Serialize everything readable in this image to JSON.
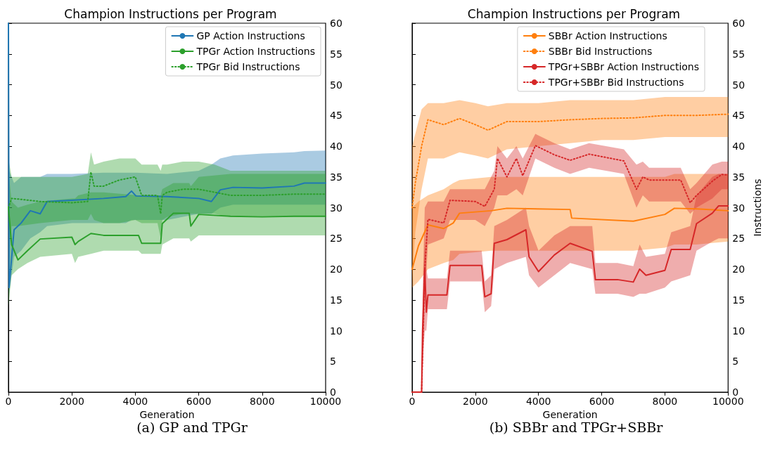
{
  "chart_data": [
    {
      "type": "line",
      "title": "Champion Instructions per Program",
      "xlabel": "Generation",
      "annotations": [
        "(a) GP and TPGr"
      ],
      "xlim": [
        0,
        10000
      ],
      "xticks": [
        0,
        2000,
        4000,
        6000,
        8000,
        10000
      ],
      "ylim": [
        0,
        60
      ],
      "yticks": [
        0,
        5,
        10,
        15,
        20,
        25,
        30,
        35,
        40,
        45,
        50,
        55,
        60
      ],
      "grid": false,
      "legend": "top right",
      "marker": "none",
      "series": [
        {
          "name": "GP Action Instructions",
          "color": "#1f77b4",
          "line_style": "solid",
          "x": [
            0,
            20,
            177,
            400,
            690,
            1000,
            1220,
            2000,
            3000,
            3700,
            3880,
            4020,
            5000,
            6000,
            6400,
            6680,
            7080,
            8000,
            9000,
            9330,
            10000
          ],
          "values": [
            60,
            17,
            26.4,
            27.5,
            29.5,
            29,
            31,
            31.2,
            31.5,
            31.8,
            32.7,
            31.9,
            31.8,
            31.5,
            31,
            32.9,
            33.3,
            33.2,
            33.5,
            34,
            34
          ],
          "lower": [
            null,
            16,
            22,
            23,
            25,
            26,
            27,
            27.5,
            27.5,
            27.5,
            28,
            28,
            28,
            29,
            29,
            30,
            30.5,
            30.5,
            30.5,
            30.5,
            30.5
          ],
          "upper": [
            null,
            36,
            34,
            35,
            35,
            35,
            35.5,
            35.5,
            35.7,
            35.7,
            35.7,
            35.7,
            35.5,
            36,
            37,
            38,
            38.5,
            38.8,
            39,
            39.2,
            39.3
          ]
        },
        {
          "name": "TPGr Action Instructions",
          "color": "#2ca02c",
          "line_style": "solid",
          "x": [
            0,
            100,
            300,
            600,
            1000,
            2000,
            2100,
            2200,
            2600,
            3000,
            4100,
            4200,
            4800,
            4850,
            5200,
            5700,
            5750,
            6000,
            7000,
            8000,
            9000,
            10000
          ],
          "values": [
            30,
            24,
            21.5,
            23,
            24.9,
            25.2,
            24,
            24.5,
            25.8,
            25.5,
            25.5,
            24.2,
            24.2,
            27.4,
            29.1,
            29.1,
            27,
            28.9,
            28.6,
            28.5,
            28.6,
            28.6
          ],
          "lower": [
            14,
            19,
            20,
            21,
            22,
            22.5,
            21,
            22,
            22.5,
            23,
            23,
            22.5,
            22.5,
            24,
            25,
            25,
            24.5,
            25.5,
            25.5,
            25.5,
            25.5,
            25.5
          ],
          "upper": [
            36,
            31,
            30,
            30.5,
            31,
            31.5,
            31.5,
            32,
            32.5,
            32.5,
            32,
            32,
            32,
            33,
            34,
            34,
            33.5,
            35,
            35.5,
            35.5,
            35.5,
            35.5
          ]
        },
        {
          "name": "TPGr Bid Instructions",
          "color": "#2ca02c",
          "line_style": "dotted",
          "x": [
            0,
            100,
            300,
            1000,
            2000,
            2500,
            2600,
            2700,
            3000,
            3500,
            4000,
            4200,
            4700,
            4800,
            4850,
            5000,
            5500,
            6000,
            6500,
            7000,
            8000,
            9000,
            10000
          ],
          "values": [
            30,
            31.5,
            31.4,
            31,
            30.8,
            31,
            35.8,
            33.5,
            33.5,
            34.5,
            35,
            32,
            32,
            29,
            32,
            32.5,
            33,
            33,
            32.5,
            32,
            32,
            32.2,
            32.2
          ],
          "lower": [
            22,
            27,
            27,
            27.5,
            28,
            28,
            29,
            28,
            27.5,
            27.5,
            28,
            27.5,
            27.5,
            25,
            28,
            28.5,
            29,
            29,
            29,
            28.5,
            28.5,
            28.5,
            28.5
          ],
          "upper": [
            38,
            35,
            35,
            35,
            35,
            35.5,
            39,
            37,
            37.5,
            38,
            38,
            37,
            37,
            36,
            37,
            37,
            37.5,
            37.5,
            37,
            36,
            36,
            36,
            36
          ]
        }
      ]
    },
    {
      "type": "line",
      "title": "Champion Instructions per Program",
      "xlabel": "Generation",
      "ylabel": "Instructions",
      "annotations": [
        "(b) SBBr and TPGr+SBBr"
      ],
      "xlim": [
        0,
        10000
      ],
      "xticks": [
        0,
        2000,
        4000,
        6000,
        8000,
        10000
      ],
      "ylim": [
        0,
        60
      ],
      "yticks": [
        0,
        5,
        10,
        15,
        20,
        25,
        30,
        35,
        40,
        45,
        50,
        55,
        60
      ],
      "grid": false,
      "legend": "top right",
      "marker": "none",
      "series": [
        {
          "name": "SBBr Action Instructions",
          "color": "#ff7f0e",
          "line_style": "solid",
          "x": [
            0,
            200,
            500,
            1000,
            1300,
            1500,
            2500,
            3000,
            5000,
            5050,
            7000,
            8000,
            8300,
            9000,
            10000
          ],
          "values": [
            20,
            23.8,
            27.2,
            26.6,
            27.5,
            29.1,
            29.5,
            29.9,
            29.7,
            28.3,
            27.8,
            28.9,
            29.9,
            29.8,
            29.5
          ],
          "lower": [
            17,
            18,
            20,
            21,
            21.5,
            22.5,
            23,
            23,
            23,
            23,
            23,
            23.5,
            24,
            24,
            24.5
          ],
          "upper": [
            30,
            31,
            32,
            33,
            34,
            34.5,
            35,
            35,
            35,
            35,
            35,
            35,
            35.5,
            35.5,
            35.5
          ]
        },
        {
          "name": "SBBr Bid Instructions",
          "color": "#ff7f0e",
          "line_style": "dotted",
          "x": [
            0,
            100,
            300,
            500,
            1000,
            1500,
            2000,
            2400,
            3000,
            4000,
            5000,
            6000,
            7000,
            8000,
            9000,
            10000
          ],
          "values": [
            30,
            34,
            40,
            44.3,
            43.5,
            44.5,
            43.5,
            42.6,
            44,
            44,
            44.3,
            44.5,
            44.6,
            45,
            45,
            45.2
          ],
          "lower": [
            18,
            26,
            33,
            38,
            38,
            39,
            38.5,
            38,
            39.5,
            40,
            40.5,
            41,
            41,
            41.5,
            41.5,
            41.5
          ],
          "upper": [
            40,
            42,
            46,
            47,
            47,
            47.5,
            47,
            46.5,
            47,
            47,
            47.5,
            47.5,
            47.5,
            48,
            48,
            48
          ]
        },
        {
          "name": "TPGr+SBBr Action Instructions",
          "color": "#d62728",
          "line_style": "solid",
          "x": [
            0,
            300,
            330,
            400,
            450,
            500,
            1100,
            1200,
            2200,
            2300,
            2500,
            2600,
            3000,
            3600,
            3700,
            4000,
            4500,
            5000,
            5700,
            5800,
            6500,
            7000,
            7200,
            7400,
            8000,
            8200,
            8800,
            9000,
            9500,
            9700,
            10000
          ],
          "values": [
            0,
            0,
            10,
            20,
            13,
            15.8,
            15.8,
            20.6,
            20.6,
            15.5,
            16,
            24.2,
            24.8,
            26.4,
            22,
            19.6,
            22.3,
            24.2,
            22.9,
            18.3,
            18.3,
            17.9,
            20,
            19,
            19.8,
            23.2,
            23.2,
            27.4,
            29.1,
            30.3,
            30.3
          ],
          "lower": [
            0,
            0,
            5,
            10,
            10,
            13.5,
            13.5,
            18,
            18,
            13,
            14,
            20,
            21,
            22,
            19,
            17,
            19,
            21,
            20,
            16,
            16,
            15.5,
            16,
            16,
            17,
            18,
            19,
            23,
            24.5,
            25,
            25
          ],
          "upper": [
            0,
            0,
            15,
            25,
            20,
            18.5,
            18.5,
            23,
            23,
            18,
            19,
            27,
            28,
            30,
            27,
            23,
            25.5,
            27,
            27,
            21,
            21,
            20.5,
            24,
            22,
            22.5,
            26,
            27,
            32,
            35,
            35.5,
            35.5
          ]
        },
        {
          "name": "TPGr+SBBr Bid Instructions",
          "color": "#d62728",
          "line_style": "dotted",
          "x": [
            0,
            300,
            350,
            400,
            500,
            1000,
            1200,
            2000,
            2300,
            2600,
            2700,
            3000,
            3300,
            3500,
            3900,
            4500,
            5000,
            5600,
            6700,
            7100,
            7300,
            7500,
            8500,
            8800,
            9000,
            9500,
            9800,
            10000
          ],
          "values": [
            0,
            0,
            10,
            20,
            28.1,
            27.5,
            31.2,
            31,
            30.2,
            33,
            38,
            35,
            38,
            35.2,
            40.1,
            38.6,
            37.7,
            38.7,
            37.6,
            33,
            35,
            34.5,
            34.5,
            30.8,
            32,
            34.3,
            35.4,
            35.3
          ],
          "lower": [
            0,
            0,
            5,
            15,
            24,
            25,
            28,
            28,
            27,
            30,
            32,
            32,
            33,
            32,
            38,
            36.5,
            35.5,
            36.5,
            35.5,
            30,
            32,
            31,
            31,
            29,
            30,
            31.5,
            33,
            33
          ],
          "upper": [
            0,
            0,
            20,
            30,
            31,
            31,
            33,
            33,
            33,
            36,
            40,
            38,
            40,
            38,
            42,
            40.5,
            39.5,
            40.5,
            39.5,
            37,
            37.5,
            36.5,
            36.5,
            33,
            34,
            37,
            37.5,
            37.5
          ]
        }
      ]
    }
  ]
}
